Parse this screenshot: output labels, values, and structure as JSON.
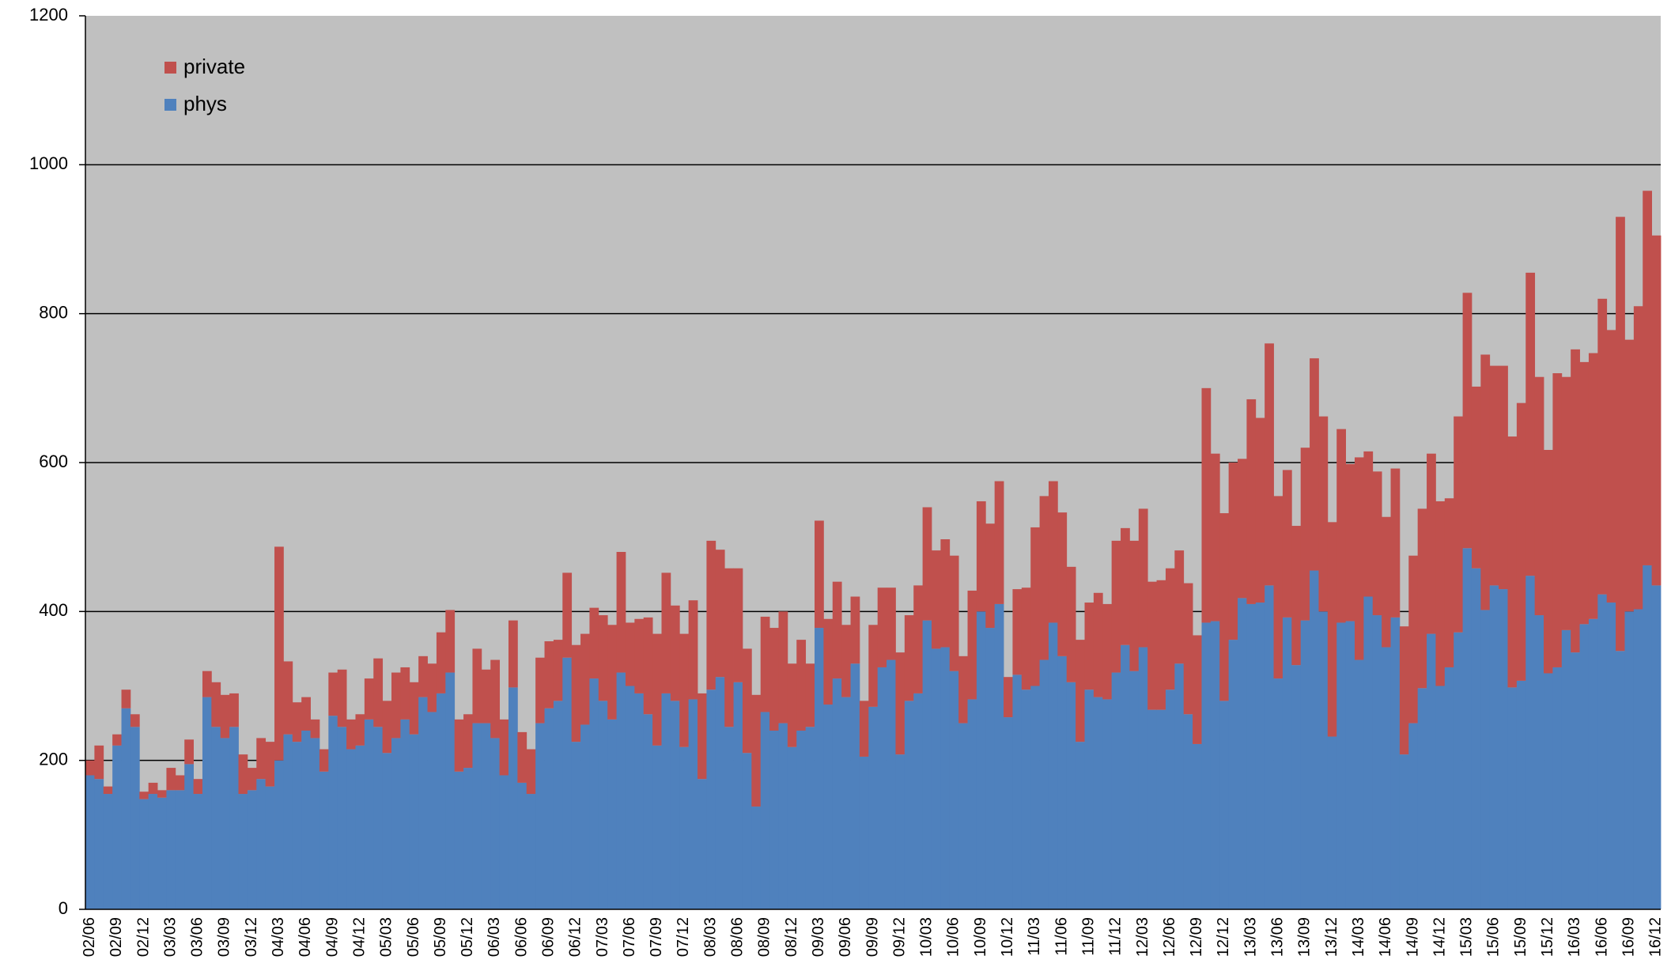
{
  "chart_data": {
    "type": "stacked_bar",
    "categories": [
      "02/06",
      null,
      null,
      "02/09",
      null,
      null,
      "02/12",
      null,
      null,
      "03/03",
      null,
      null,
      "03/06",
      null,
      null,
      "03/09",
      null,
      null,
      "03/12",
      null,
      null,
      "04/03",
      null,
      null,
      "04/06",
      null,
      null,
      "04/09",
      null,
      null,
      "04/12",
      null,
      null,
      "05/03",
      null,
      null,
      "05/06",
      null,
      null,
      "05/09",
      null,
      null,
      "05/12",
      null,
      null,
      "06/03",
      null,
      null,
      "06/06",
      null,
      null,
      "06/09",
      null,
      null,
      "06/12",
      null,
      null,
      "07/03",
      null,
      null,
      "07/06",
      null,
      null,
      "07/09",
      null,
      null,
      "07/12",
      null,
      null,
      "08/03",
      null,
      null,
      "08/06",
      null,
      null,
      "08/09",
      null,
      null,
      "08/12",
      null,
      null,
      "09/03",
      null,
      null,
      "09/06",
      null,
      null,
      "09/09",
      null,
      null,
      "09/12",
      null,
      null,
      "10/03",
      null,
      null,
      "10/06",
      null,
      null,
      "10/09",
      null,
      null,
      "10/12",
      null,
      null,
      "11/03",
      null,
      null,
      "11/06",
      null,
      null,
      "11/09",
      null,
      null,
      "11/12",
      null,
      null,
      "12/03",
      null,
      null,
      "12/06",
      null,
      null,
      "12/09",
      null,
      null,
      "12/12",
      null,
      null,
      "13/03",
      null,
      null,
      "13/06",
      null,
      null,
      "13/09",
      null,
      null,
      "13/12",
      null,
      null,
      "14/03",
      null,
      null,
      "14/06",
      null,
      null,
      "14/09",
      null,
      null,
      "14/12",
      null,
      null,
      "15/03",
      null,
      null,
      "15/06",
      null,
      null,
      "15/09",
      null,
      null,
      "15/12",
      null,
      null,
      "16/03",
      null,
      null,
      "16/06",
      null,
      null,
      "16/09",
      null,
      null,
      "16/12"
    ],
    "series": [
      {
        "name": "phys",
        "color": "#4f81bd",
        "values": [
          180,
          175,
          155,
          220,
          270,
          245,
          148,
          155,
          150,
          160,
          160,
          195,
          155,
          285,
          245,
          230,
          245,
          155,
          160,
          175,
          165,
          200,
          235,
          225,
          240,
          230,
          185,
          260,
          245,
          215,
          220,
          255,
          245,
          210,
          230,
          255,
          235,
          285,
          265,
          290,
          318,
          185,
          190,
          250,
          250,
          230,
          180,
          298,
          170,
          155,
          250,
          270,
          280,
          338,
          225,
          248,
          310,
          280,
          255,
          318,
          300,
          290,
          262,
          220,
          290,
          280,
          218,
          282,
          175,
          295,
          312,
          245,
          305,
          210,
          138,
          265,
          240,
          250,
          218,
          240,
          245,
          378,
          275,
          310,
          285,
          330,
          205,
          272,
          325,
          335,
          208,
          280,
          290,
          388,
          350,
          352,
          320,
          250,
          282,
          400,
          378,
          410,
          258,
          315,
          295,
          300,
          335,
          385,
          340,
          305,
          225,
          295,
          285,
          282,
          318,
          355,
          320,
          352,
          268,
          268,
          295,
          330,
          262,
          222,
          385,
          387,
          280,
          362,
          418,
          410,
          412,
          435,
          310,
          392,
          328,
          388,
          455,
          400,
          232,
          385,
          387,
          335,
          420,
          395,
          352,
          392,
          208,
          250,
          297,
          370,
          300,
          325,
          372,
          485,
          458,
          402,
          435,
          430,
          298,
          307,
          448,
          395,
          317,
          325,
          375,
          345,
          383,
          390,
          423,
          412,
          347,
          400,
          403,
          462,
          435
        ]
      },
      {
        "name": "private",
        "color": "#c0504d",
        "values": [
          20,
          45,
          10,
          15,
          25,
          17,
          10,
          15,
          10,
          30,
          20,
          33,
          20,
          35,
          60,
          58,
          45,
          53,
          30,
          55,
          60,
          287,
          98,
          53,
          45,
          25,
          30,
          58,
          77,
          40,
          42,
          55,
          92,
          70,
          88,
          70,
          70,
          55,
          65,
          82,
          84,
          70,
          72,
          100,
          72,
          105,
          75,
          90,
          68,
          60,
          88,
          90,
          82,
          114,
          130,
          122,
          95,
          115,
          127,
          162,
          85,
          100,
          130,
          150,
          162,
          128,
          152,
          133,
          115,
          200,
          171,
          213,
          153,
          140,
          150,
          128,
          138,
          150,
          112,
          122,
          85,
          144,
          115,
          130,
          97,
          90,
          75,
          110,
          107,
          97,
          137,
          115,
          145,
          152,
          132,
          145,
          155,
          90,
          146,
          148,
          140,
          165,
          54,
          115,
          137,
          213,
          220,
          190,
          193,
          155,
          137,
          117,
          140,
          128,
          177,
          157,
          175,
          186,
          172,
          174,
          163,
          152,
          176,
          146,
          315,
          225,
          252,
          238,
          187,
          275,
          248,
          325,
          245,
          198,
          187,
          232,
          285,
          262,
          288,
          260,
          211,
          272,
          195,
          193,
          175,
          200,
          172,
          225,
          241,
          242,
          248,
          227,
          290,
          343,
          244,
          343,
          295,
          300,
          337,
          373,
          407,
          320,
          300,
          395,
          340,
          407,
          352,
          357,
          397,
          366,
          583,
          365,
          407,
          503,
          470
        ]
      }
    ],
    "ylim": [
      0,
      1200
    ],
    "yticks": [
      0,
      200,
      400,
      600,
      800,
      1000,
      1200
    ],
    "grid": true,
    "legend": "upper left"
  }
}
